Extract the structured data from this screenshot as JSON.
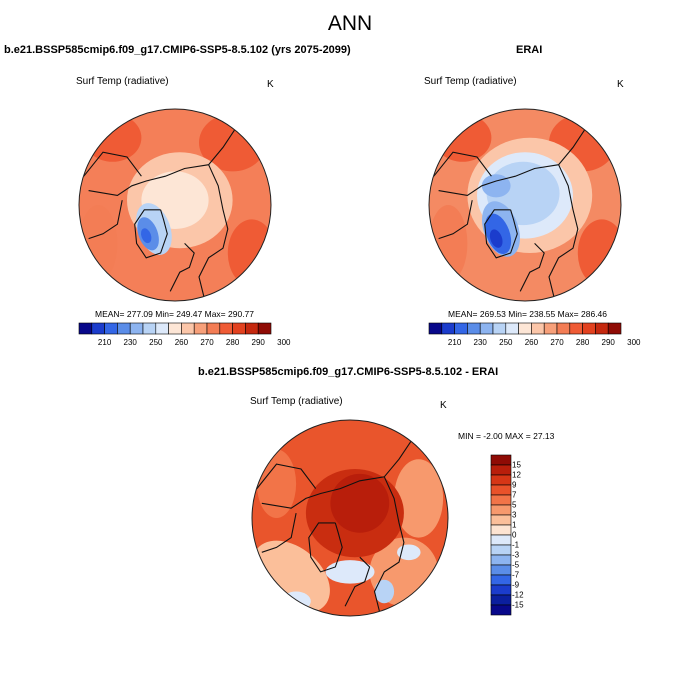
{
  "figure": {
    "title": "ANN"
  },
  "panels": [
    {
      "title": "b.e21.BSSP585cmip6.f09_g17.CMIP6-SSP5-8.5.102 (yrs 2075-2099)",
      "variable": "Surf Temp (radiative)",
      "units": "K",
      "stats": "MEAN= 277.09  Min= 249.47  Max= 290.77",
      "colorbar_ticks": [
        "210",
        "230",
        "250",
        "260",
        "270",
        "280",
        "290",
        "300"
      ]
    },
    {
      "title": "ERAI",
      "variable": "Surf Temp (radiative)",
      "units": "K",
      "stats": "MEAN= 269.53  Min= 238.55  Max= 286.46",
      "colorbar_ticks": [
        "210",
        "230",
        "250",
        "260",
        "270",
        "280",
        "290",
        "300"
      ]
    },
    {
      "title": "b.e21.BSSP585cmip6.f09_g17.CMIP6-SSP5-8.5.102 - ERAI",
      "variable": "Surf Temp (radiative)",
      "units": "K",
      "stats": "MIN =  -2.00 MAX =  27.13",
      "colorbar_ticks": [
        "15",
        "12",
        "9",
        "7",
        "5",
        "3",
        "1",
        "0",
        "-1",
        "-3",
        "-5",
        "-7",
        "-9",
        "-12",
        "-15"
      ]
    }
  ],
  "colors": {
    "abs_scale": [
      "#08088a",
      "#1b3ccc",
      "#3366e6",
      "#5b8de8",
      "#8db4f0",
      "#b8d3f5",
      "#dde9fa",
      "#fde6d6",
      "#fbc6a9",
      "#f7a07a",
      "#f37d55",
      "#ef5b35",
      "#e2411f",
      "#c5280f",
      "#8f0b05"
    ],
    "diff_scale": [
      "#8f0b05",
      "#b81e0b",
      "#d63616",
      "#e9522a",
      "#f27448",
      "#f7996d",
      "#fbbf9a",
      "#fde4d2",
      "#dde9fa",
      "#b8d3f5",
      "#8db4f0",
      "#5b8de8",
      "#3366e6",
      "#1b3ccc",
      "#0b1f9e",
      "#08088a"
    ]
  }
}
